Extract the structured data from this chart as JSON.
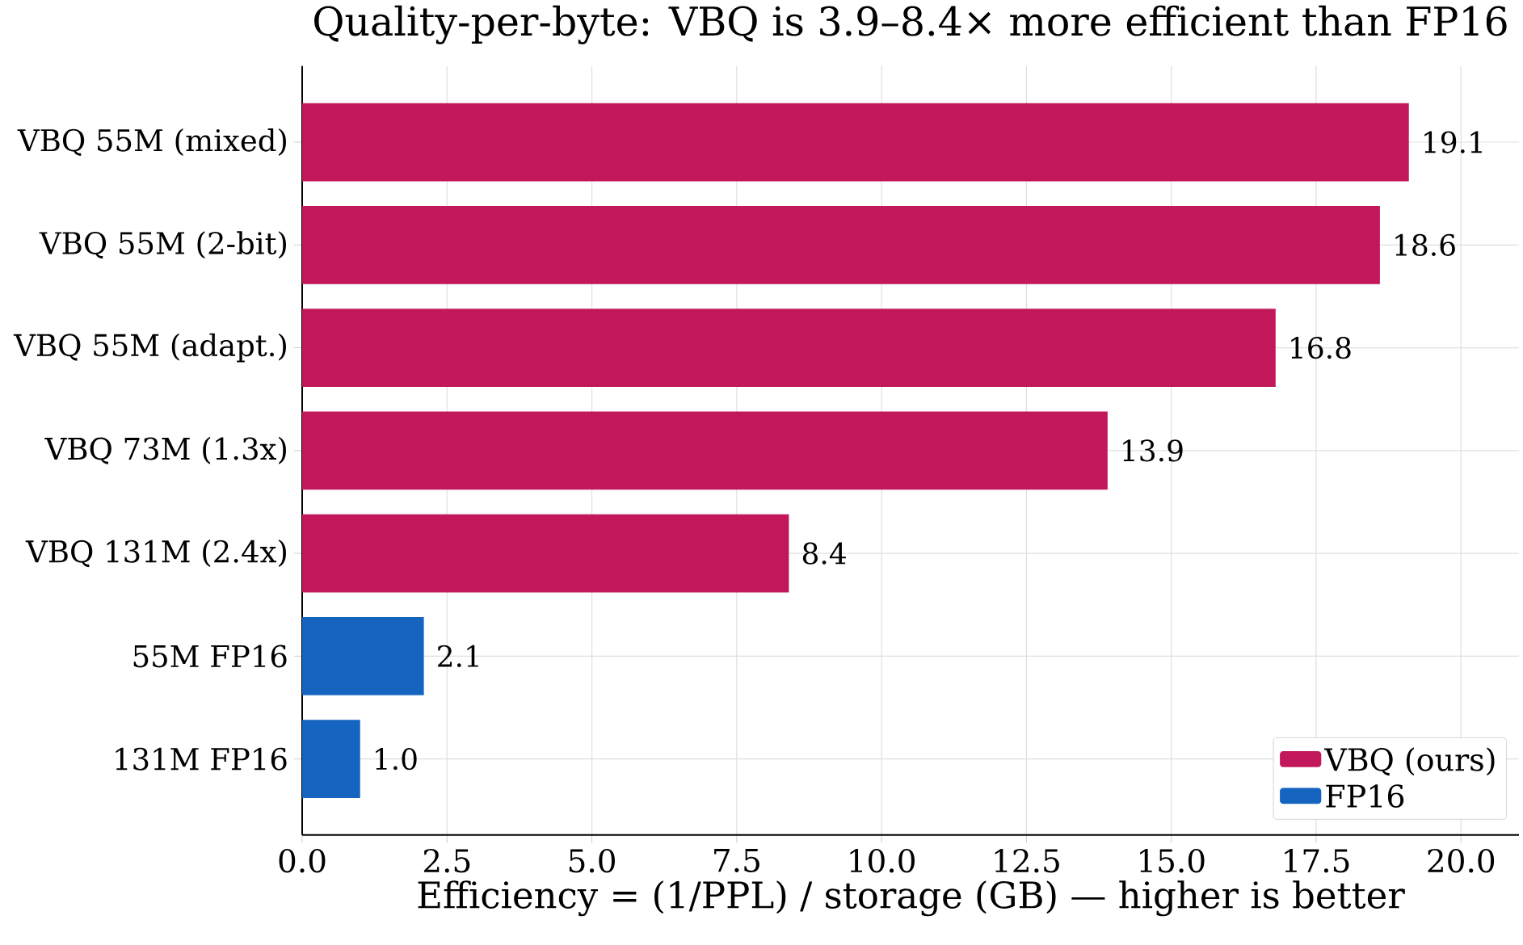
{
  "chart_data": {
    "type": "bar",
    "orientation": "horizontal",
    "title": "Quality-per-byte: VBQ is 3.9–8.4× more efficient than FP16",
    "xlabel": "Efficiency = (1/PPL) / storage (GB) — higher is better",
    "categories": [
      "VBQ 55M (mixed)",
      "VBQ 55M (2-bit)",
      "VBQ 55M (adapt.)",
      "VBQ 73M (1.3x)",
      "VBQ 131M (2.4x)",
      "55M FP16",
      "131M FP16"
    ],
    "series": [
      {
        "name": "VBQ (ours)",
        "color": "#c2185b",
        "values": [
          19.1,
          18.6,
          16.8,
          13.9,
          8.4,
          null,
          null
        ],
        "value_labels": [
          "19.1",
          "18.6",
          "16.8",
          "13.9",
          "8.4",
          null,
          null
        ]
      },
      {
        "name": "FP16",
        "color": "#1565c0",
        "values": [
          null,
          null,
          null,
          null,
          null,
          2.1,
          1.0
        ],
        "value_labels": [
          null,
          null,
          null,
          null,
          null,
          "2.1",
          "1.0"
        ]
      }
    ],
    "xlim": [
      0,
      21
    ],
    "xticks": [
      {
        "value": 0,
        "label": "0.0"
      },
      {
        "value": 2.5,
        "label": "2.5"
      },
      {
        "value": 5,
        "label": "5.0"
      },
      {
        "value": 7.5,
        "label": "7.5"
      },
      {
        "value": 10,
        "label": "10.0"
      },
      {
        "value": 12.5,
        "label": "12.5"
      },
      {
        "value": 15,
        "label": "15.0"
      },
      {
        "value": 17.5,
        "label": "17.5"
      },
      {
        "value": 20,
        "label": "20.0"
      }
    ],
    "grid": true,
    "legend": "bottom right"
  }
}
